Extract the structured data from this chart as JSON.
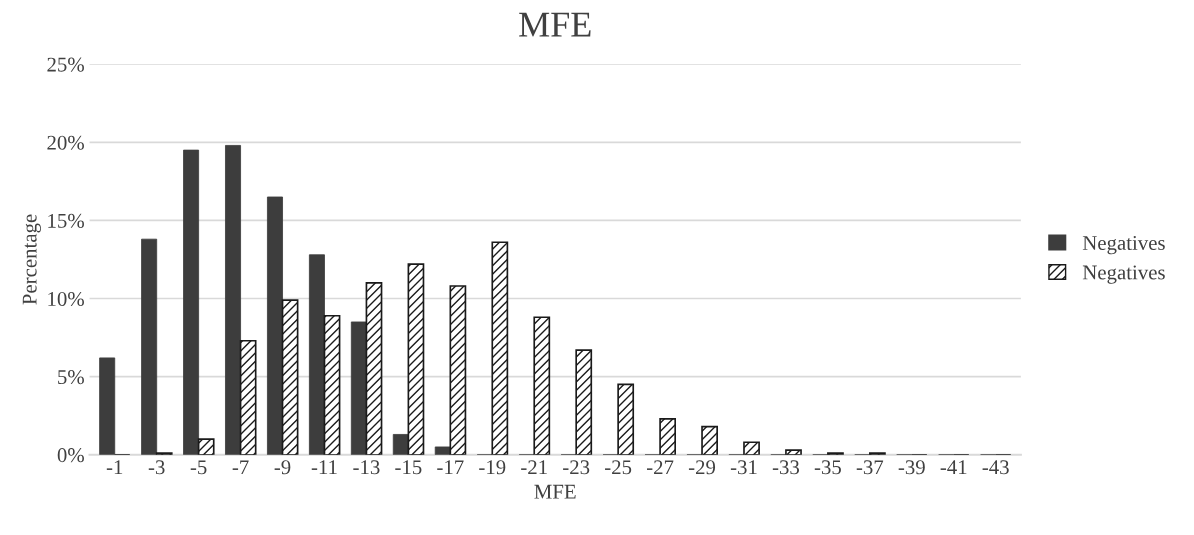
{
  "chart_data": {
    "type": "bar",
    "title": "MFE",
    "xlabel": "MFE",
    "ylabel": "Percentage",
    "categories": [
      "-1",
      "-3",
      "-5",
      "-7",
      "-9",
      "-11",
      "-13",
      "-15",
      "-17",
      "-19",
      "-21",
      "-23",
      "-25",
      "-27",
      "-29",
      "-31",
      "-33",
      "-35",
      "-37",
      "-39",
      "-41",
      "-43"
    ],
    "series": [
      {
        "name": "Negatives",
        "color": "#3d3d3d",
        "values": [
          6.2,
          13.8,
          19.5,
          19.8,
          16.5,
          12.8,
          8.5,
          1.3,
          0.5,
          0,
          0,
          0,
          0,
          0,
          0,
          0,
          0,
          0,
          0,
          0,
          0,
          0
        ]
      },
      {
        "name": "Negatives",
        "color": "#1a1a1a",
        "values": [
          0,
          0.1,
          1.0,
          7.3,
          9.9,
          8.9,
          11.0,
          12.2,
          10.8,
          13.6,
          8.8,
          6.7,
          4.5,
          2.3,
          1.8,
          0.8,
          0.3,
          0.1,
          0.1,
          0,
          0,
          0
        ]
      }
    ],
    "ylim": [
      0,
      25
    ],
    "yticks": [
      {
        "value": 0,
        "label": "0%"
      },
      {
        "value": 5,
        "label": "5%"
      },
      {
        "value": 10,
        "label": "10%"
      },
      {
        "value": 15,
        "label": "15%"
      },
      {
        "value": 20,
        "label": "20%"
      },
      {
        "value": 25,
        "label": "25%"
      }
    ],
    "grid": "y",
    "legend": "right"
  }
}
